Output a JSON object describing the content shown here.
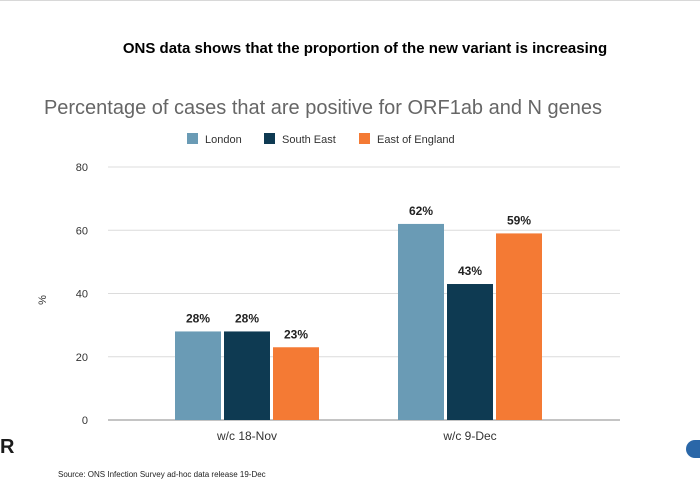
{
  "slide": {
    "headline": "ONS data shows that the proportion of the new variant is increasing",
    "source": "Source: ONS Infection Survey ad-hoc data release 19-Dec",
    "logo_left_text": "R",
    "logo_right_name": "partner-logo-icon"
  },
  "chart_data": {
    "type": "bar",
    "title": "Percentage of cases that are positive for ORF1ab and N genes",
    "xlabel": "",
    "ylabel": "%",
    "ylim": [
      0,
      80
    ],
    "yticks": [
      0,
      20,
      40,
      60,
      80
    ],
    "grid": true,
    "legend_position": "top",
    "categories": [
      "w/c 18-Nov",
      "w/c 9-Dec"
    ],
    "series": [
      {
        "name": "London",
        "color": "#6a9bb5",
        "values": [
          28,
          62
        ],
        "labels": [
          "28%",
          "62%"
        ]
      },
      {
        "name": "South East",
        "color": "#0e3a52",
        "values": [
          28,
          43
        ],
        "labels": [
          "28%",
          "43%"
        ]
      },
      {
        "name": "East of England",
        "color": "#f47a34",
        "values": [
          23,
          59
        ],
        "labels": [
          "23%",
          "59%"
        ]
      }
    ]
  }
}
